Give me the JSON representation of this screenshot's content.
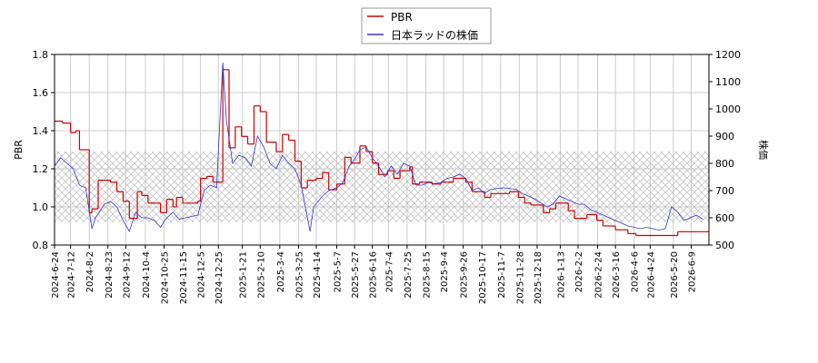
{
  "chart_data": {
    "type": "line",
    "ylabel": "PBR",
    "y2label": "株価",
    "xlim": [
      "2024-6-24",
      "2026-6-29"
    ],
    "xticks": [
      "2024-6-24",
      "2024-7-12",
      "2024-8-2",
      "2024-8-23",
      "2024-9-12",
      "2024-10-4",
      "2024-10-25",
      "2024-11-15",
      "2024-12-5",
      "2024-12-25",
      "2025-1-21",
      "2025-2-10",
      "2025-3-4",
      "2025-3-25",
      "2025-4-14",
      "2025-5-7",
      "2025-5-27",
      "2025-6-16",
      "2025-7-4",
      "2025-7-25",
      "2025-8-15",
      "2025-9-4",
      "2025-9-26",
      "2025-10-17",
      "2025-11-7",
      "2025-11-28",
      "2025-12-18",
      "2026-1-13",
      "2026-2-2",
      "2026-2-24",
      "2026-3-16",
      "2026-4-6",
      "2026-4-24",
      "2026-5-20",
      "2026-6-9"
    ],
    "ylim": [
      0.8,
      1.8
    ],
    "yticks": [
      {
        "value": 0.8,
        "label": "0.8"
      },
      {
        "value": 1.0,
        "label": "1.0"
      },
      {
        "value": 1.2,
        "label": "1.2"
      },
      {
        "value": 1.4,
        "label": "1.4"
      },
      {
        "value": 1.6,
        "label": "1.6"
      },
      {
        "value": 1.8,
        "label": "1.8"
      }
    ],
    "y2lim": [
      500,
      1200
    ],
    "y2ticks": [
      500,
      600,
      700,
      800,
      900,
      1000,
      1100,
      1200
    ],
    "shaded_range": [
      0.92,
      1.29
    ],
    "grid": true,
    "series": [
      {
        "name": "PBR",
        "color": "#cc0000",
        "step": true,
        "x": [
          "2024-6-24",
          "2024-7-3",
          "2024-7-12",
          "2024-7-18",
          "2024-7-22",
          "2024-8-2",
          "2024-8-5",
          "2024-8-12",
          "2024-8-26",
          "2024-9-2",
          "2024-9-9",
          "2024-9-16",
          "2024-9-25",
          "2024-9-30",
          "2024-10-7",
          "2024-10-21",
          "2024-10-28",
          "2024-11-4",
          "2024-11-8",
          "2024-11-15",
          "2024-12-2",
          "2024-12-5",
          "2024-12-12",
          "2024-12-19",
          "2024-12-30",
          "2025-1-6",
          "2025-1-13",
          "2025-1-20",
          "2025-1-27",
          "2025-2-3",
          "2025-2-10",
          "2025-2-17",
          "2025-2-28",
          "2025-3-7",
          "2025-3-14",
          "2025-3-21",
          "2025-3-28",
          "2025-4-4",
          "2025-4-14",
          "2025-4-21",
          "2025-4-28",
          "2025-5-7",
          "2025-5-16",
          "2025-5-23",
          "2025-6-2",
          "2025-6-9",
          "2025-6-16",
          "2025-6-23",
          "2025-7-3",
          "2025-7-10",
          "2025-7-17",
          "2025-7-28",
          "2025-7-31",
          "2025-8-8",
          "2025-8-22",
          "2025-9-1",
          "2025-9-15",
          "2025-9-29",
          "2025-10-6",
          "2025-10-20",
          "2025-10-27",
          "2025-11-17",
          "2025-11-27",
          "2025-12-4",
          "2025-12-11",
          "2025-12-25",
          "2026-1-1",
          "2026-1-8",
          "2026-1-22",
          "2026-1-29",
          "2026-2-12",
          "2026-2-23",
          "2026-3-2",
          "2026-3-16",
          "2026-3-30",
          "2026-4-8",
          "2026-5-25"
        ],
        "values": [
          1.45,
          1.44,
          1.39,
          1.4,
          1.3,
          0.97,
          0.99,
          1.14,
          1.13,
          1.08,
          1.03,
          0.94,
          1.08,
          1.06,
          1.02,
          0.97,
          1.04,
          1.0,
          1.05,
          1.02,
          1.03,
          1.15,
          1.16,
          1.13,
          1.72,
          1.31,
          1.42,
          1.37,
          1.33,
          1.53,
          1.5,
          1.34,
          1.29,
          1.38,
          1.35,
          1.24,
          1.1,
          1.14,
          1.15,
          1.18,
          1.09,
          1.12,
          1.26,
          1.23,
          1.32,
          1.29,
          1.23,
          1.17,
          1.19,
          1.15,
          1.19,
          1.21,
          1.12,
          1.13,
          1.12,
          1.13,
          1.15,
          1.13,
          1.08,
          1.05,
          1.07,
          1.08,
          1.05,
          1.02,
          1.01,
          0.97,
          0.99,
          1.02,
          0.98,
          0.94,
          0.96,
          0.93,
          0.9,
          0.88,
          0.86,
          0.85,
          0.87
        ]
      },
      {
        "name": "日本ラッドの株価",
        "color": "#3333cc",
        "axis": "y2",
        "x": [
          "2024-6-24",
          "2024-7-1",
          "2024-7-8",
          "2024-7-15",
          "2024-7-22",
          "2024-7-29",
          "2024-8-5",
          "2024-8-9",
          "2024-8-19",
          "2024-8-26",
          "2024-9-2",
          "2024-9-9",
          "2024-9-16",
          "2024-9-23",
          "2024-9-30",
          "2024-10-7",
          "2024-10-14",
          "2024-10-21",
          "2024-10-28",
          "2024-11-4",
          "2024-11-11",
          "2024-11-18",
          "2024-11-25",
          "2024-12-2",
          "2024-12-9",
          "2024-12-16",
          "2024-12-23",
          "2024-12-30",
          "2025-1-3",
          "2025-1-10",
          "2025-1-17",
          "2025-1-24",
          "2025-1-31",
          "2025-2-7",
          "2025-2-14",
          "2025-2-21",
          "2025-2-28",
          "2025-3-7",
          "2025-3-14",
          "2025-3-21",
          "2025-3-28",
          "2025-4-7",
          "2025-4-11",
          "2025-4-21",
          "2025-4-28",
          "2025-5-7",
          "2025-5-14",
          "2025-5-21",
          "2025-5-28",
          "2025-6-2",
          "2025-6-9",
          "2025-6-16",
          "2025-6-23",
          "2025-6-30",
          "2025-7-7",
          "2025-7-14",
          "2025-7-21",
          "2025-7-28",
          "2025-8-4",
          "2025-8-11",
          "2025-8-18",
          "2025-8-25",
          "2025-9-1",
          "2025-9-8",
          "2025-9-15",
          "2025-9-22",
          "2025-9-29",
          "2025-10-6",
          "2025-10-13",
          "2025-10-20",
          "2025-10-27",
          "2025-11-10",
          "2025-11-24",
          "2025-12-1",
          "2025-12-8",
          "2025-12-15",
          "2025-12-22",
          "2025-12-29",
          "2026-1-5",
          "2026-1-12",
          "2026-1-19",
          "2026-1-26",
          "2026-2-2",
          "2026-2-9",
          "2026-2-16",
          "2026-2-23",
          "2026-3-2",
          "2026-3-9",
          "2026-3-16",
          "2026-3-23",
          "2026-3-30",
          "2026-4-6",
          "2026-4-13",
          "2026-4-20",
          "2026-4-27",
          "2026-5-4",
          "2026-5-11",
          "2026-5-18",
          "2026-5-25",
          "2026-6-1",
          "2026-6-8",
          "2026-6-15",
          "2026-6-22"
        ],
        "values": [
          790,
          820,
          800,
          780,
          720,
          710,
          560,
          600,
          650,
          660,
          640,
          590,
          550,
          620,
          600,
          600,
          590,
          565,
          600,
          620,
          595,
          600,
          605,
          610,
          700,
          720,
          710,
          1170,
          960,
          800,
          830,
          820,
          790,
          900,
          860,
          800,
          780,
          830,
          800,
          780,
          720,
          550,
          640,
          680,
          700,
          710,
          730,
          790,
          820,
          850,
          860,
          820,
          790,
          750,
          790,
          760,
          800,
          790,
          720,
          720,
          730,
          725,
          730,
          745,
          750,
          760,
          745,
          700,
          710,
          690,
          705,
          710,
          705,
          690,
          680,
          670,
          655,
          640,
          650,
          680,
          670,
          660,
          650,
          650,
          630,
          620,
          610,
          600,
          590,
          580,
          570,
          565,
          560,
          565,
          560,
          555,
          560,
          640,
          620,
          590,
          600,
          610,
          595
        ]
      }
    ]
  }
}
